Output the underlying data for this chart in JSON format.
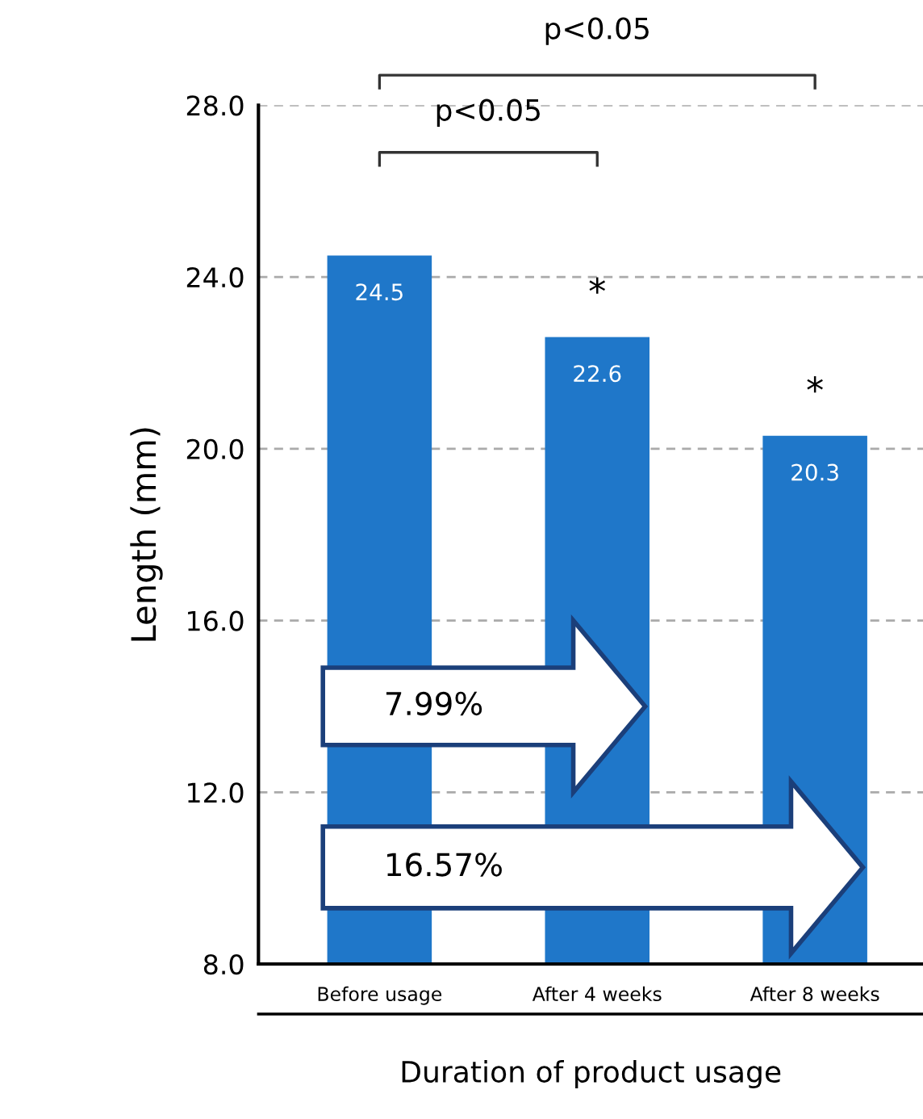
{
  "chart_data": {
    "type": "bar",
    "categories": [
      "Before usage",
      "After 4 weeks",
      "After 8 weeks"
    ],
    "values": [
      24.5,
      22.6,
      20.3
    ],
    "color": "#1f77c9",
    "data_labels": true,
    "xlabel": "Duration of product usage",
    "ylabel": "Length (mm)",
    "ylim": [
      8,
      28
    ],
    "yticks": [
      {
        "value": 8,
        "label": "8.0"
      },
      {
        "value": 12,
        "label": "12.0"
      },
      {
        "value": 16,
        "label": "16.0"
      },
      {
        "value": 20,
        "label": "20.0"
      },
      {
        "value": 24,
        "label": "24.0"
      },
      {
        "value": 28,
        "label": "28.0"
      }
    ],
    "grid": "y",
    "annotations": [
      "*",
      "*",
      "p<0.05",
      "p<0.05",
      "7.99%",
      "16.57%"
    ]
  }
}
